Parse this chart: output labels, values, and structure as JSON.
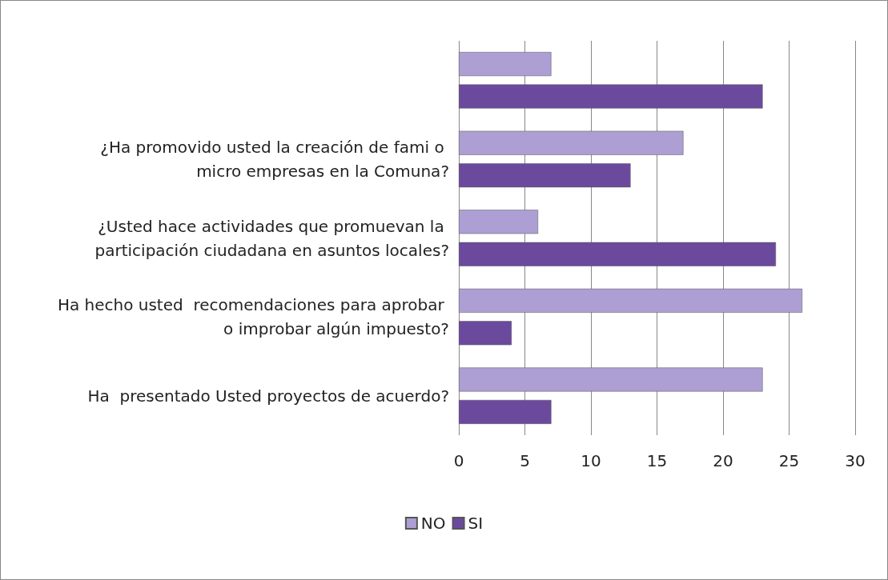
{
  "chart_data": {
    "type": "bar",
    "orientation": "horizontal",
    "categories": [
      null,
      "¿Ha promovido usted la creación de fami o micro empresas en la Comuna?",
      "¿Usted hace actividades que promuevan la participación ciudadana en asuntos locales?",
      "Ha hecho usted  recomendaciones para aprobar o improbar algún impuesto?",
      "Ha  presentado Usted proyectos de acuerdo?"
    ],
    "series": [
      {
        "name": "NO",
        "color": "#ad9fd3",
        "values": [
          7,
          17,
          6,
          26,
          23
        ]
      },
      {
        "name": "SI",
        "color": "#6b4a9e",
        "values": [
          23,
          13,
          24,
          4,
          7
        ]
      }
    ],
    "xlim": [
      0,
      30
    ],
    "xticks": [
      0,
      5,
      10,
      15,
      20,
      25,
      30
    ],
    "grid": "x",
    "legend": "bottom"
  }
}
